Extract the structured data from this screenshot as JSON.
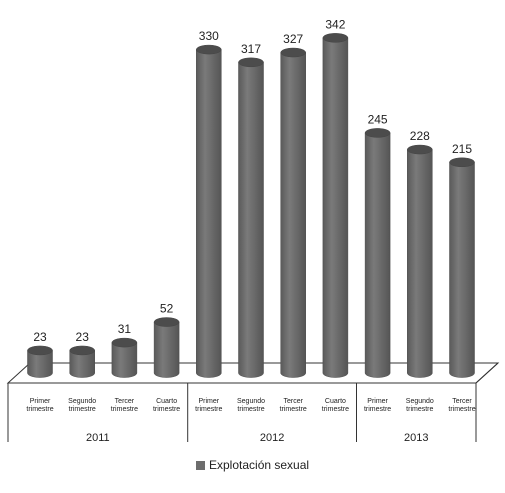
{
  "chart_data": {
    "type": "bar",
    "groups": [
      {
        "label": "2011",
        "categories": [
          "Primer trimestre",
          "Segundo trimestre",
          "Tercer trimestre",
          "Cuarto trimestre"
        ]
      },
      {
        "label": "2012",
        "categories": [
          "Primer trimestre",
          "Segundo trimestre",
          "Tercer trimestre",
          "Cuarto trimestre"
        ]
      },
      {
        "label": "2013",
        "categories": [
          "Primer trimestre",
          "Segundo trimestre",
          "Tercer trimestre"
        ]
      }
    ],
    "series": [
      {
        "name": "Explotación sexual",
        "values": [
          23,
          23,
          31,
          52,
          330,
          317,
          327,
          342,
          245,
          228,
          215
        ]
      }
    ],
    "ylim": [
      0,
      350
    ],
    "bar_color": "#6d6d6d",
    "grid": false,
    "legend_position": "bottom"
  }
}
